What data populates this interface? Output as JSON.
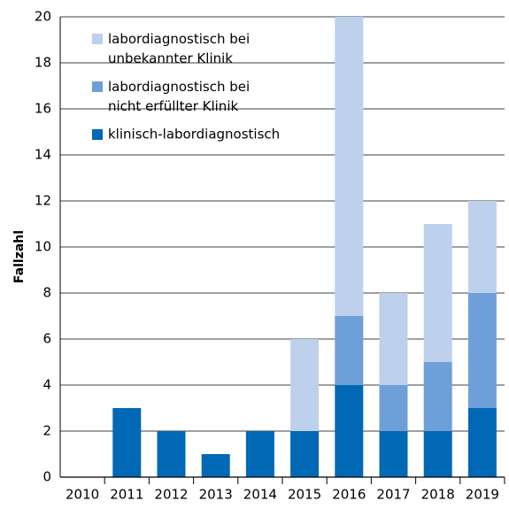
{
  "chart_data": {
    "type": "stacked-bar",
    "y_label": "Fallzahl",
    "categories": [
      "2010",
      "2011",
      "2012",
      "2013",
      "2014",
      "2015",
      "2016",
      "2017",
      "2018",
      "2019"
    ],
    "series": [
      {
        "name": "klinisch-labordiagnostisch",
        "color": "#0068b4",
        "values": [
          0,
          3,
          2,
          1,
          2,
          2,
          4,
          2,
          2,
          3
        ]
      },
      {
        "name": "labordiagnostisch bei nicht erfüllter Klinik",
        "color": "#6f9fd8",
        "values": [
          0,
          0,
          0,
          0,
          0,
          0,
          3,
          2,
          3,
          5
        ]
      },
      {
        "name": "labordiagnostisch bei unbekannter Klinik",
        "color": "#bdd0ec",
        "values": [
          0,
          0,
          0,
          0,
          0,
          4,
          13,
          4,
          6,
          4
        ]
      }
    ],
    "ylim": [
      0,
      20
    ],
    "yticks": [
      0,
      2,
      4,
      6,
      8,
      10,
      12,
      14,
      16,
      18,
      20
    ],
    "grid": true,
    "legend": "top-left"
  }
}
